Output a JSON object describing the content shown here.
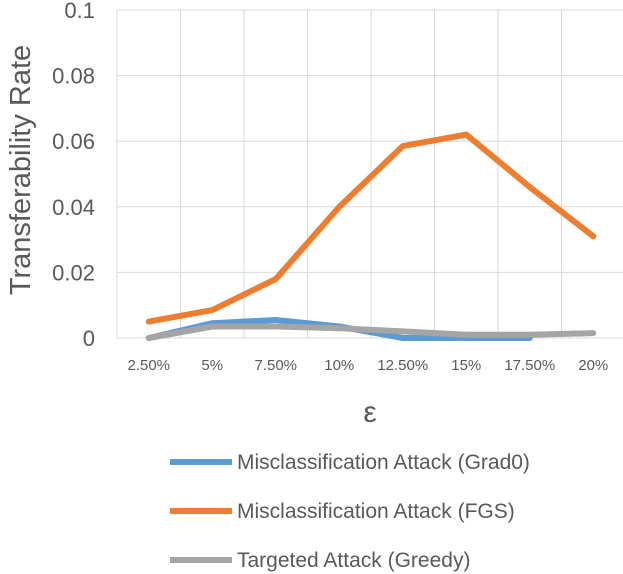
{
  "chart_data": {
    "type": "line",
    "categories": [
      "2.50%",
      "5%",
      "7.50%",
      "10%",
      "12.50%",
      "15%",
      "17.50%",
      "20%"
    ],
    "series": [
      {
        "name": "Misclassification Attack (Grad0)",
        "color": "#5B9BD5",
        "values": [
          0.0,
          0.0045,
          0.0055,
          0.0035,
          0.0,
          0.0,
          0.0,
          null
        ]
      },
      {
        "name": "Misclassification Attack (FGS)",
        "color": "#ED7D31",
        "values": [
          0.005,
          0.0085,
          0.018,
          0.04,
          0.0585,
          0.062,
          0.046,
          0.031
        ]
      },
      {
        "name": "Targeted Attack (Greedy)",
        "color": "#A5A5A5",
        "values": [
          0.0,
          0.0035,
          0.0035,
          0.003,
          0.002,
          0.001,
          0.001,
          0.0015
        ]
      }
    ],
    "yticks": [
      "0",
      "0.02",
      "0.04",
      "0.06",
      "0.08",
      "0.1"
    ],
    "ylim": [
      0,
      0.1
    ],
    "xlabel": "ε",
    "ylabel": "Transferability Rate",
    "grid": true,
    "legend_position": "bottom"
  }
}
